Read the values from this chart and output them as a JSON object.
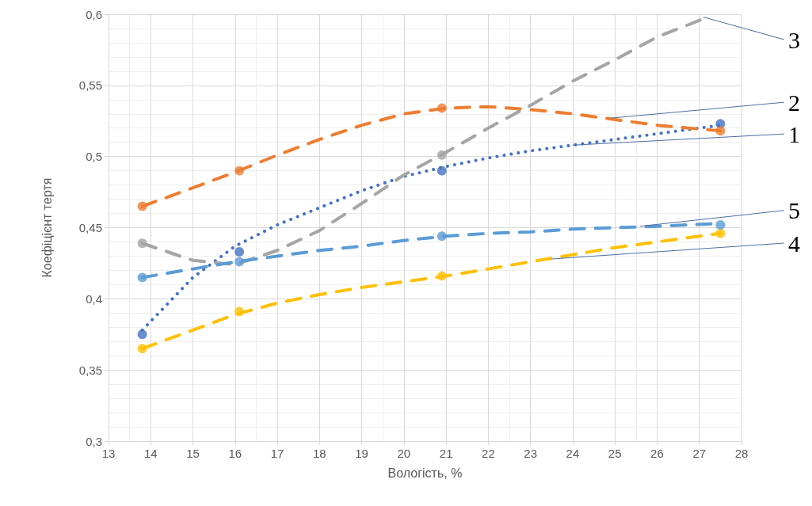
{
  "chart_data": {
    "type": "scatter",
    "xlabel": "Вологість, %",
    "ylabel": "Коефіцієнт тертя",
    "xlim": [
      13,
      28
    ],
    "xticks": [
      13,
      14,
      15,
      16,
      17,
      18,
      19,
      20,
      21,
      22,
      23,
      24,
      25,
      26,
      27,
      28
    ],
    "ylim": [
      0.3,
      0.6
    ],
    "yticks": [
      {
        "value": 0.3,
        "label": "0,3"
      },
      {
        "value": 0.35,
        "label": "0,35"
      },
      {
        "value": 0.4,
        "label": "0,4"
      },
      {
        "value": 0.45,
        "label": "0,45"
      },
      {
        "value": 0.5,
        "label": "0,5"
      },
      {
        "value": 0.55,
        "label": "0,55"
      },
      {
        "value": 0.6,
        "label": "0,6"
      }
    ],
    "grid": true,
    "series": [
      {
        "color": "#4472c4",
        "marker": "circle",
        "x": [
          13.8,
          16.1,
          20.9,
          27.5
        ],
        "values": [
          0.375,
          0.433,
          0.49,
          0.523
        ]
      },
      {
        "color": "#ed7d31",
        "marker": "circle",
        "x": [
          13.8,
          16.1,
          20.9,
          27.5
        ],
        "values": [
          0.465,
          0.49,
          0.534,
          0.518
        ]
      },
      {
        "color": "#a5a5a5",
        "marker": "circle",
        "x": [
          13.8,
          16.1,
          20.9
        ],
        "values": [
          0.439,
          null,
          0.501
        ]
      },
      {
        "color": "#ffc000",
        "marker": "circle",
        "x": [
          13.8,
          16.1,
          20.9,
          27.5
        ],
        "values": [
          0.365,
          0.391,
          0.416,
          0.446
        ]
      },
      {
        "color": "#5b9bd5",
        "marker": "circle",
        "x": [
          13.8,
          16.1,
          20.9,
          27.5
        ],
        "values": [
          0.415,
          0.426,
          0.444,
          0.452
        ]
      },
      {
        "type": "line",
        "color": "#4472c4",
        "marker": "none",
        "line_style": "dotted",
        "x": [
          13.8,
          15,
          16,
          17,
          18,
          19,
          20,
          21,
          22,
          23,
          24,
          25,
          26,
          27.5
        ],
        "values": [
          0.378,
          0.415,
          0.437,
          0.452,
          0.464,
          0.476,
          0.486,
          0.493,
          0.499,
          0.504,
          0.508,
          0.512,
          0.516,
          0.522
        ]
      },
      {
        "type": "line",
        "color": "#ed7d31",
        "marker": "none",
        "line_style": "dashed",
        "x": [
          13.8,
          15,
          16,
          17,
          18,
          19,
          20,
          21,
          22,
          23,
          24,
          25,
          26,
          27.5
        ],
        "values": [
          0.465,
          0.478,
          0.489,
          0.501,
          0.512,
          0.522,
          0.53,
          0.534,
          0.535,
          0.533,
          0.53,
          0.526,
          0.522,
          0.518
        ]
      },
      {
        "type": "line",
        "color": "#a5a5a5",
        "marker": "none",
        "line_style": "dashed",
        "x": [
          13.8,
          15,
          16,
          17,
          18,
          19,
          20,
          21,
          22,
          23,
          24,
          25,
          26,
          27.2
        ],
        "values": [
          0.439,
          0.427,
          0.424,
          0.434,
          0.448,
          0.467,
          0.487,
          0.503,
          0.52,
          0.536,
          0.553,
          0.568,
          0.584,
          0.598
        ]
      },
      {
        "type": "line",
        "color": "#ffc000",
        "marker": "none",
        "line_style": "dashed",
        "x": [
          13.8,
          15,
          16,
          17,
          18,
          19,
          20,
          21,
          22,
          23,
          24,
          25,
          26,
          27.5
        ],
        "values": [
          0.365,
          0.378,
          0.389,
          0.397,
          0.403,
          0.408,
          0.412,
          0.416,
          0.421,
          0.426,
          0.431,
          0.436,
          0.44,
          0.446
        ]
      },
      {
        "type": "line",
        "color": "#5b9bd5",
        "marker": "none",
        "line_style": "dashed",
        "x": [
          13.8,
          15,
          16,
          17,
          18,
          19,
          20,
          21,
          22,
          23,
          24,
          25,
          26,
          27.5
        ],
        "values": [
          0.415,
          0.421,
          0.426,
          0.43,
          0.434,
          0.437,
          0.441,
          0.444,
          0.446,
          0.447,
          0.449,
          0.45,
          0.451,
          0.453
        ]
      }
    ],
    "annotations": [
      {
        "text": "3",
        "x": 27.1,
        "y": 0.598
      },
      {
        "text": "2",
        "x": 24.9,
        "y": 0.527
      },
      {
        "text": "1",
        "x": 24,
        "y": 0.508
      },
      {
        "text": "5",
        "x": 25.6,
        "y": 0.451
      },
      {
        "text": "4",
        "x": 23.5,
        "y": 0.428
      }
    ]
  }
}
